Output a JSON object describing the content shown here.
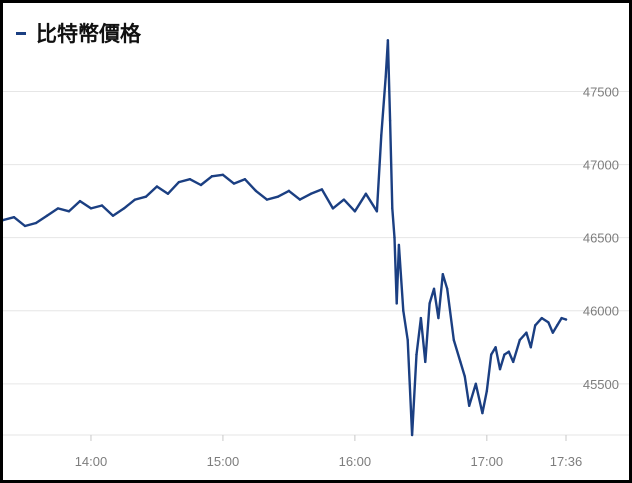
{
  "legend": {
    "label": "比特幣價格"
  },
  "colors": {
    "line": "#1b3f82",
    "grid": "#e6e6e6",
    "tick": "#7d7d7d"
  },
  "chart_data": {
    "type": "line",
    "title": "",
    "xlabel": "",
    "ylabel": "",
    "xlim": [
      "13:20",
      "17:36"
    ],
    "ylim": [
      45150,
      47900
    ],
    "x_ticks": [
      "14:00",
      "15:00",
      "16:00",
      "17:00",
      "17:36"
    ],
    "y_ticks": [
      45500,
      46000,
      46500,
      47000,
      47500
    ],
    "y_axis_position": "right",
    "grid": true,
    "legend": "top-left",
    "series": [
      {
        "name": "比特幣價格",
        "x": [
          "13:20",
          "13:25",
          "13:30",
          "13:35",
          "13:40",
          "13:45",
          "13:50",
          "13:55",
          "14:00",
          "14:05",
          "14:10",
          "14:15",
          "14:20",
          "14:25",
          "14:30",
          "14:35",
          "14:40",
          "14:45",
          "14:50",
          "14:55",
          "15:00",
          "15:05",
          "15:10",
          "15:15",
          "15:20",
          "15:25",
          "15:30",
          "15:35",
          "15:40",
          "15:45",
          "15:50",
          "15:55",
          "16:00",
          "16:05",
          "16:10",
          "16:12",
          "16:14",
          "16:15",
          "16:16",
          "16:17",
          "16:18",
          "16:19",
          "16:20",
          "16:22",
          "16:24",
          "16:26",
          "16:28",
          "16:30",
          "16:32",
          "16:34",
          "16:36",
          "16:38",
          "16:40",
          "16:42",
          "16:45",
          "16:48",
          "16:50",
          "16:52",
          "16:55",
          "16:58",
          "17:00",
          "17:02",
          "17:04",
          "17:06",
          "17:08",
          "17:10",
          "17:12",
          "17:15",
          "17:18",
          "17:20",
          "17:22",
          "17:25",
          "17:28",
          "17:30",
          "17:32",
          "17:34",
          "17:36"
        ],
        "values": [
          46620,
          46640,
          46580,
          46600,
          46650,
          46700,
          46680,
          46750,
          46700,
          46720,
          46650,
          46700,
          46760,
          46780,
          46850,
          46800,
          46880,
          46900,
          46860,
          46920,
          46930,
          46870,
          46900,
          46820,
          46760,
          46780,
          46820,
          46760,
          46800,
          46830,
          46700,
          46760,
          46680,
          46800,
          46680,
          47200,
          47600,
          47850,
          47300,
          46700,
          46500,
          46050,
          46450,
          46000,
          45800,
          45150,
          45700,
          45950,
          45650,
          46050,
          46150,
          45950,
          46250,
          46150,
          45800,
          45650,
          45550,
          45350,
          45500,
          45300,
          45450,
          45700,
          45750,
          45600,
          45700,
          45720,
          45650,
          45800,
          45850,
          45750,
          45900,
          45950,
          45920,
          45850,
          45900,
          45950,
          45940
        ]
      }
    ]
  }
}
